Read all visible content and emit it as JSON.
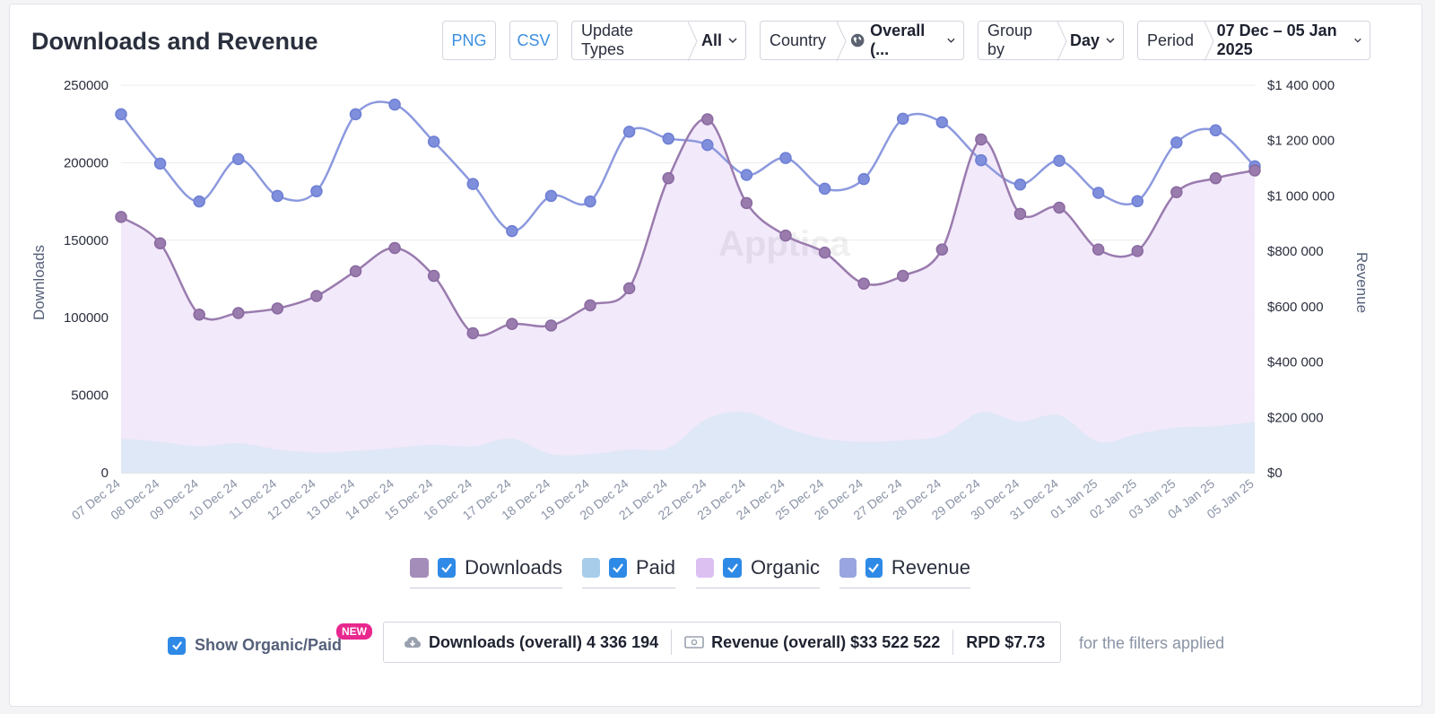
{
  "header": {
    "title": "Downloads and Revenue",
    "png_label": "PNG",
    "csv_label": "CSV",
    "filters": [
      {
        "label": "Update Types",
        "value": "All"
      },
      {
        "label": "Country",
        "value": "Overall (..."
      },
      {
        "label": "Group by",
        "value": "Day"
      },
      {
        "label": "Period",
        "value": "07 Dec – 05 Jan 2025"
      }
    ]
  },
  "chart_data": {
    "type": "line",
    "title": "Downloads and Revenue",
    "ylabel": "Downloads",
    "y2label": "Revenue",
    "ylim": [
      0,
      250000
    ],
    "y2lim": [
      0,
      1400000
    ],
    "yticks": [
      "250000",
      "200000",
      "150000",
      "100000",
      "50000",
      "0"
    ],
    "y2ticks": [
      "$1 400 000",
      "$1 200 000",
      "$1 000 000",
      "$800 000",
      "$600 000",
      "$400 000",
      "$200 000",
      "$0"
    ],
    "watermark": "Apptica",
    "categories": [
      "07 Dec 24",
      "08 Dec 24",
      "09 Dec 24",
      "10 Dec 24",
      "11 Dec 24",
      "12 Dec 24",
      "13 Dec 24",
      "14 Dec 24",
      "15 Dec 24",
      "16 Dec 24",
      "17 Dec 24",
      "18 Dec 24",
      "19 Dec 24",
      "20 Dec 24",
      "21 Dec 24",
      "22 Dec 24",
      "23 Dec 24",
      "24 Dec 24",
      "25 Dec 24",
      "26 Dec 24",
      "27 Dec 24",
      "28 Dec 24",
      "29 Dec 24",
      "30 Dec 24",
      "31 Dec 24",
      "01 Jan 25",
      "02 Jan 25",
      "03 Jan 25",
      "04 Jan 25",
      "05 Jan 25"
    ],
    "series": [
      {
        "name": "Downloads",
        "axis": "left",
        "color": "#9a7bae",
        "values": [
          165000,
          148000,
          102000,
          103000,
          106000,
          114000,
          130000,
          145000,
          127000,
          90000,
          96000,
          95000,
          108000,
          119000,
          190000,
          228000,
          174000,
          153000,
          142000,
          122000,
          127000,
          144000,
          215000,
          167000,
          171000,
          144000,
          143000,
          181000,
          190000,
          195000
        ]
      },
      {
        "name": "Paid",
        "axis": "left",
        "color": "#a8cdea",
        "values": [
          22000,
          20000,
          17000,
          19000,
          15000,
          13000,
          14000,
          16000,
          18000,
          17000,
          22000,
          12000,
          12000,
          15000,
          16000,
          35000,
          39000,
          29000,
          22000,
          20000,
          21000,
          24000,
          39000,
          33000,
          37000,
          20000,
          25000,
          29000,
          30000,
          33000
        ]
      },
      {
        "name": "Organic",
        "axis": "left",
        "color": "#dcc0f2",
        "values": [
          143000,
          128000,
          85000,
          84000,
          91000,
          101000,
          116000,
          129000,
          109000,
          73000,
          74000,
          83000,
          96000,
          104000,
          174000,
          193000,
          135000,
          124000,
          120000,
          102000,
          106000,
          120000,
          176000,
          134000,
          134000,
          124000,
          118000,
          152000,
          160000,
          162000
        ]
      },
      {
        "name": "Revenue",
        "axis": "right",
        "color": "#7f8fdc",
        "values": [
          1295000,
          1117000,
          980000,
          1133000,
          1000000,
          1017000,
          1295000,
          1330000,
          1196000,
          1043000,
          873000,
          1000000,
          980000,
          1232000,
          1207000,
          1184000,
          1076000,
          1137000,
          1026000,
          1061000,
          1279000,
          1266000,
          1129000,
          1041000,
          1127000,
          1011000,
          981000,
          1193000,
          1237000,
          1107000
        ]
      }
    ],
    "legend_position": "bottom"
  },
  "legend": [
    {
      "name": "Downloads",
      "color": "#a48db8"
    },
    {
      "name": "Paid",
      "color": "#a8cdea"
    },
    {
      "name": "Organic",
      "color": "#dcc0f2"
    },
    {
      "name": "Revenue",
      "color": "#98a5e0"
    }
  ],
  "footer": {
    "show_label": "Show Organic/Paid",
    "new_badge": "NEW",
    "downloads_stat": "Downloads (overall) 4 336 194",
    "revenue_stat": "Revenue (overall) $33 522 522",
    "rpd_stat": "RPD $7.73",
    "note": "for the filters applied"
  }
}
